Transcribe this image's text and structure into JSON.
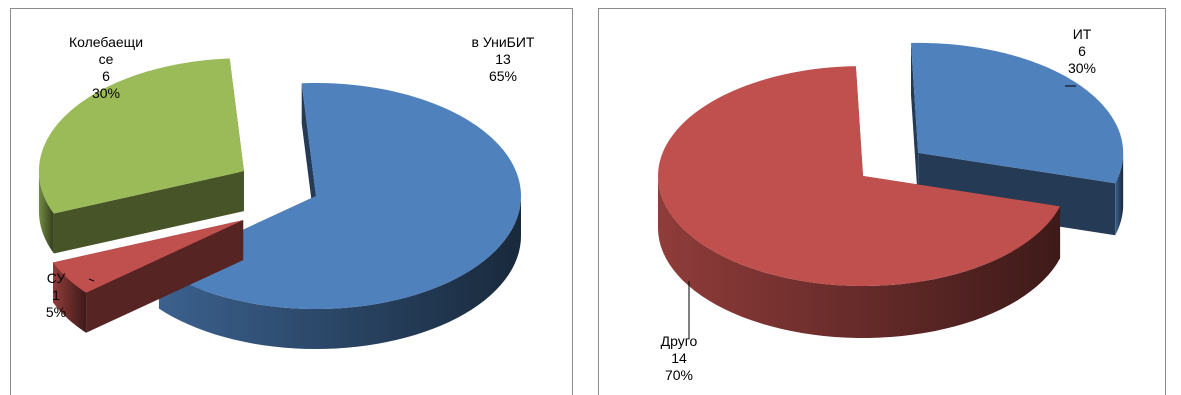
{
  "chart_data": [
    {
      "type": "pie",
      "title": "",
      "slices": [
        {
          "label_lines": [
            "в УниБИТ"
          ],
          "count": "13",
          "percent": "65%",
          "value": 13,
          "color": "#4f81bd"
        },
        {
          "label_lines": [
            "СУ"
          ],
          "count": "1",
          "percent": "5%",
          "value": 1,
          "color": "#c0504d"
        },
        {
          "label_lines": [
            "Колебаещи",
            "се"
          ],
          "count": "6",
          "percent": "30%",
          "value": 6,
          "color": "#9bbb59"
        }
      ]
    },
    {
      "type": "pie",
      "title": "",
      "slices": [
        {
          "label_lines": [
            "ИТ"
          ],
          "count": "6",
          "percent": "30%",
          "value": 6,
          "color": "#4f81bd"
        },
        {
          "label_lines": [
            "Друго"
          ],
          "count": "14",
          "percent": "70%",
          "value": 14,
          "color": "#c0504d"
        }
      ]
    }
  ]
}
